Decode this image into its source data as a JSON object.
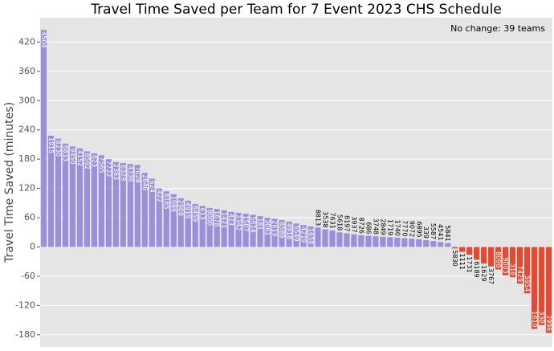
{
  "chart_data": {
    "type": "bar",
    "title": "Travel Time Saved per Team for 7 Event 2023 CHS Schedule",
    "y_label": "Travel Time Saved (minutes)",
    "annotation": "No change: 39 teams",
    "categories": [
      "4504",
      "1915",
      "8230",
      "6833",
      "9450",
      "4152",
      "8592",
      "623",
      "7565",
      "7722",
      "2363",
      "6329",
      "4336",
      "7028",
      "2846",
      "624",
      "422",
      "8165",
      "1086",
      "2908",
      "4919",
      "6459",
      "613",
      "8000",
      "1678",
      "1421",
      "423",
      "2342",
      "1507",
      "5614",
      "181",
      "3061",
      "2619",
      "8589",
      "4918",
      "5549",
      "4219",
      "1658",
      "8813",
      "3538",
      "7631",
      "5618",
      "8197",
      "3937",
      "8726",
      "686",
      "3748",
      "2849",
      "1719",
      "1740",
      "7770",
      "9072",
      "6895",
      "339",
      "5587",
      "4541",
      "5841",
      "5830",
      "1111",
      "1731",
      "6189",
      "1629",
      "3767",
      "8098",
      "9003",
      "316",
      "7429",
      "5954",
      "1610",
      "330",
      "2996"
    ],
    "values": [
      445,
      228,
      222,
      212,
      206,
      202,
      196,
      192,
      188,
      180,
      174,
      172,
      170,
      168,
      152,
      140,
      120,
      114,
      108,
      100,
      95,
      88,
      84,
      80,
      78,
      75,
      72,
      70,
      68,
      66,
      63,
      60,
      58,
      55,
      52,
      48,
      45,
      42,
      40,
      36,
      34,
      30,
      28,
      26,
      24,
      23,
      22,
      21,
      20,
      19,
      18,
      17,
      16,
      14,
      12,
      10,
      8,
      -3,
      -10,
      -16,
      -26,
      -34,
      -40,
      -46,
      -58,
      -62,
      -75,
      -95,
      -168,
      -160,
      -176
    ],
    "positive_color": "#9a90da",
    "negative_color": "#e24a33",
    "ylim": [
      -205,
      470
    ],
    "yticks": [
      -180,
      -120,
      -60,
      0,
      60,
      120,
      180,
      240,
      300,
      360,
      420
    ],
    "grid": true
  }
}
